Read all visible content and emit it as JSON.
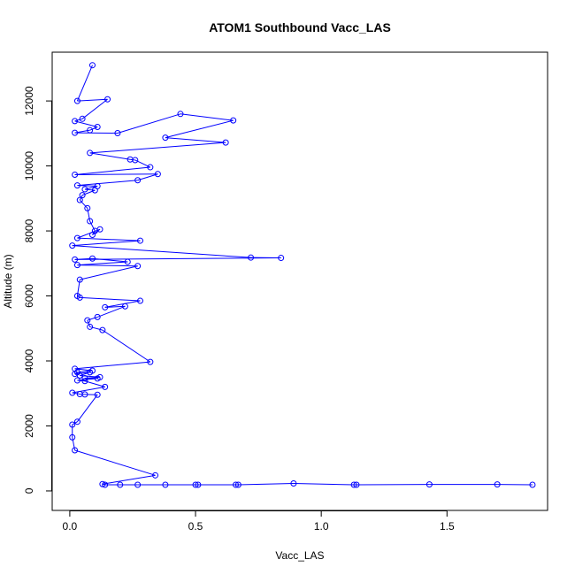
{
  "chart_data": {
    "type": "scatter",
    "title": "ATOM1 Southbound Vacc_LAS",
    "xlabel": "Vacc_LAS",
    "ylabel": "Altitude (m)",
    "xlim": [
      -0.07,
      1.9
    ],
    "ylim": [
      -600,
      13500
    ],
    "x_ticks": [
      0.0,
      0.5,
      1.0,
      1.5
    ],
    "x_tick_labels": [
      "0.0",
      "0.5",
      "1.0",
      "1.5"
    ],
    "y_ticks": [
      0,
      2000,
      4000,
      6000,
      8000,
      10000,
      12000
    ],
    "y_tick_labels": [
      "0",
      "2000",
      "4000",
      "6000",
      "8000",
      "10000",
      "12000"
    ],
    "grid": false,
    "legend": "none",
    "colors": {
      "series": "#0000ff",
      "axis": "#000000",
      "background": "#ffffff"
    },
    "series": [
      {
        "marker": "open-circle",
        "connected": true,
        "points": [
          [
            0.09,
            13100
          ],
          [
            0.03,
            12000
          ],
          [
            0.15,
            12050
          ],
          [
            0.05,
            11450
          ],
          [
            0.02,
            11380
          ],
          [
            0.11,
            11200
          ],
          [
            0.08,
            11100
          ],
          [
            0.02,
            11020
          ],
          [
            0.19,
            11010
          ],
          [
            0.44,
            11600
          ],
          [
            0.65,
            11400
          ],
          [
            0.38,
            10870
          ],
          [
            0.62,
            10720
          ],
          [
            0.08,
            10400
          ],
          [
            0.24,
            10200
          ],
          [
            0.26,
            10180
          ],
          [
            0.32,
            9960
          ],
          [
            0.02,
            9730
          ],
          [
            0.35,
            9750
          ],
          [
            0.27,
            9560
          ],
          [
            0.03,
            9400
          ],
          [
            0.11,
            9380
          ],
          [
            0.06,
            9280
          ],
          [
            0.1,
            9250
          ],
          [
            0.05,
            9100
          ],
          [
            0.04,
            8950
          ],
          [
            0.07,
            8700
          ],
          [
            0.08,
            8300
          ],
          [
            0.1,
            8000
          ],
          [
            0.09,
            7880
          ],
          [
            0.12,
            8050
          ],
          [
            0.03,
            7780
          ],
          [
            0.28,
            7700
          ],
          [
            0.01,
            7550
          ],
          [
            0.72,
            7180
          ],
          [
            0.84,
            7170
          ],
          [
            0.02,
            7120
          ],
          [
            0.09,
            7150
          ],
          [
            0.23,
            7050
          ],
          [
            0.03,
            6950
          ],
          [
            0.27,
            6920
          ],
          [
            0.04,
            6500
          ],
          [
            0.03,
            6000
          ],
          [
            0.04,
            5950
          ],
          [
            0.28,
            5850
          ],
          [
            0.14,
            5650
          ],
          [
            0.22,
            5680
          ],
          [
            0.11,
            5350
          ],
          [
            0.07,
            5250
          ],
          [
            0.08,
            5050
          ],
          [
            0.13,
            4950
          ],
          [
            0.32,
            3970
          ],
          [
            0.02,
            3760
          ],
          [
            0.09,
            3700
          ],
          [
            0.03,
            3650
          ],
          [
            0.02,
            3600
          ],
          [
            0.08,
            3650
          ],
          [
            0.04,
            3550
          ],
          [
            0.12,
            3500
          ],
          [
            0.06,
            3470
          ],
          [
            0.11,
            3460
          ],
          [
            0.03,
            3400
          ],
          [
            0.06,
            3380
          ],
          [
            0.14,
            3200
          ],
          [
            0.01,
            3020
          ],
          [
            0.04,
            2980
          ],
          [
            0.06,
            2970
          ],
          [
            0.11,
            2960
          ],
          [
            0.03,
            2130
          ],
          [
            0.01,
            2040
          ],
          [
            0.01,
            1650
          ],
          [
            0.02,
            1250
          ],
          [
            0.34,
            480
          ],
          [
            0.13,
            210
          ],
          [
            0.14,
            190
          ],
          [
            0.2,
            190
          ],
          [
            0.27,
            190
          ],
          [
            0.38,
            190
          ],
          [
            0.5,
            190
          ],
          [
            0.51,
            190
          ],
          [
            0.66,
            190
          ],
          [
            0.67,
            190
          ],
          [
            0.89,
            230
          ],
          [
            1.13,
            190
          ],
          [
            1.14,
            190
          ],
          [
            1.43,
            200
          ],
          [
            1.7,
            200
          ],
          [
            1.84,
            190
          ]
        ]
      }
    ]
  }
}
